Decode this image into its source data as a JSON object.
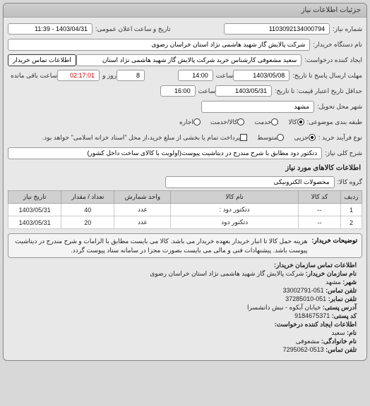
{
  "panel_title": "جزئیات اطلاعات نیاز",
  "fields": {
    "need_number_label": "شماره نیاز:",
    "need_number": "1103092134000794",
    "announce_label": "تاریخ و ساعت اعلان عمومی:",
    "announce_value": "1403/04/31 - 11:39",
    "buyer_org_label": "نام دستگاه خریدار:",
    "buyer_org": "شرکت پالایش گاز شهید هاشمی نژاد   استان خراسان رضوی",
    "creator_label": "ایجاد کننده درخواست:",
    "creator": "سعید مشعوفی  کارشناس خرید شرکت پالایش گاز شهید هاشمی نژاد   استان",
    "contact_btn": "اطلاعات تماس خریدار",
    "deadline_label": "مهلت ارسال پاسخ تا تاریخ:",
    "deadline_date": "1403/05/08",
    "time_label": "ساعت",
    "deadline_time": "14:00",
    "days_label": "روز و",
    "days_value": "8",
    "remaining_time": "02:17:01",
    "remaining_label": "ساعت باقی مانده",
    "price_valid_label": "حداقل تاریخ اعتبار قیمت: تا تاریخ:",
    "price_valid_date": "1403/05/31",
    "price_valid_time": "16:00",
    "delivery_city_label": "شهر محل تحویل:",
    "delivery_city": "مشهد",
    "subject_type_label": "طبقه بندی موضوعی:",
    "subject_kala": "کالا",
    "subject_khadamat": "خدمت",
    "subject_both": "کالا/خدمت",
    "subject_rent": "اجاره",
    "process_label": "نوع فرآیند خرید :",
    "process_opt1": "جزیی",
    "process_opt2": "متوسط",
    "process_note": "پرداخت تمام یا بخشی از مبلغ خرید،از محل \"اسناد خزانه اسلامی\" خواهد بود.",
    "need_key_label": "شرح کلی نیاز:",
    "need_key": "دتکتور دود مطابق با شرح مندرج در دیتاشیت پیوست(اولویت با کالای ساخت داخل کشور)",
    "goods_section": "اطلاعات کالاهای مورد نیاز",
    "goods_group_label": "گروه کالا:",
    "goods_group": "محصولات الکترونیکی",
    "buyer_notes_label": "توضیحات خریدار:",
    "buyer_notes": "هزینه حمل کالا تا انبار خریدار بعهده خریدار می باشد. کالا می بایست مطابق با الزامات و شرح مندرج در دیتاشیت پیوست باشد. پیشنهادات فنی و مالی می بایست بصورت مجزا در سامانه ستاد پیوست گردد."
  },
  "goods_table": {
    "headers": [
      "ردیف",
      "کد کالا",
      "نام کالا",
      "واحد شمارش",
      "تعداد / مقدار",
      "تاریخ نیاز"
    ],
    "rows": [
      [
        "1",
        "--",
        "دتکتور دود :",
        "عدد",
        "40",
        "1403/05/31"
      ],
      [
        "2",
        "--",
        "دتکتور دود",
        "عدد",
        "20",
        "1403/05/31"
      ]
    ],
    "col_widths": [
      "6%",
      "12%",
      "36%",
      "16%",
      "15%",
      "15%"
    ]
  },
  "contact": {
    "section_title": "اطلاعات تماس سازمان خریدار:",
    "org_label": "نام سازمان خریدار:",
    "org": " شرکت پالایش گاز شهید هاشمی نژاد استان خراسان رضوی",
    "city_label": "شهر:",
    "city": " مشهد",
    "tel_label": "تلفن تماس:",
    "tel": " 051-33002791",
    "fax_label": "تلفن نمابر:",
    "fax": " 051-37285010",
    "addr_label": "آدرس پستی:",
    "addr": " خیابان آبکوه - نبش دانشسرا",
    "zip_label": "کد پستی:",
    "zip": " 9184675371",
    "creator_section": "اطلاعات ایجاد کننده درخواست:",
    "name_label": "نام:",
    "name": " سعید",
    "family_label": "نام خانوادگی:",
    "family": " مشعوفی",
    "phone_label": "تلفن تماس:",
    "phone": " 0513-7295062"
  },
  "colors": {
    "panel_bg": "#e8e8e8",
    "header_bg": "#c7c7c7",
    "field_bg": "#ffffff",
    "border": "#999999"
  }
}
